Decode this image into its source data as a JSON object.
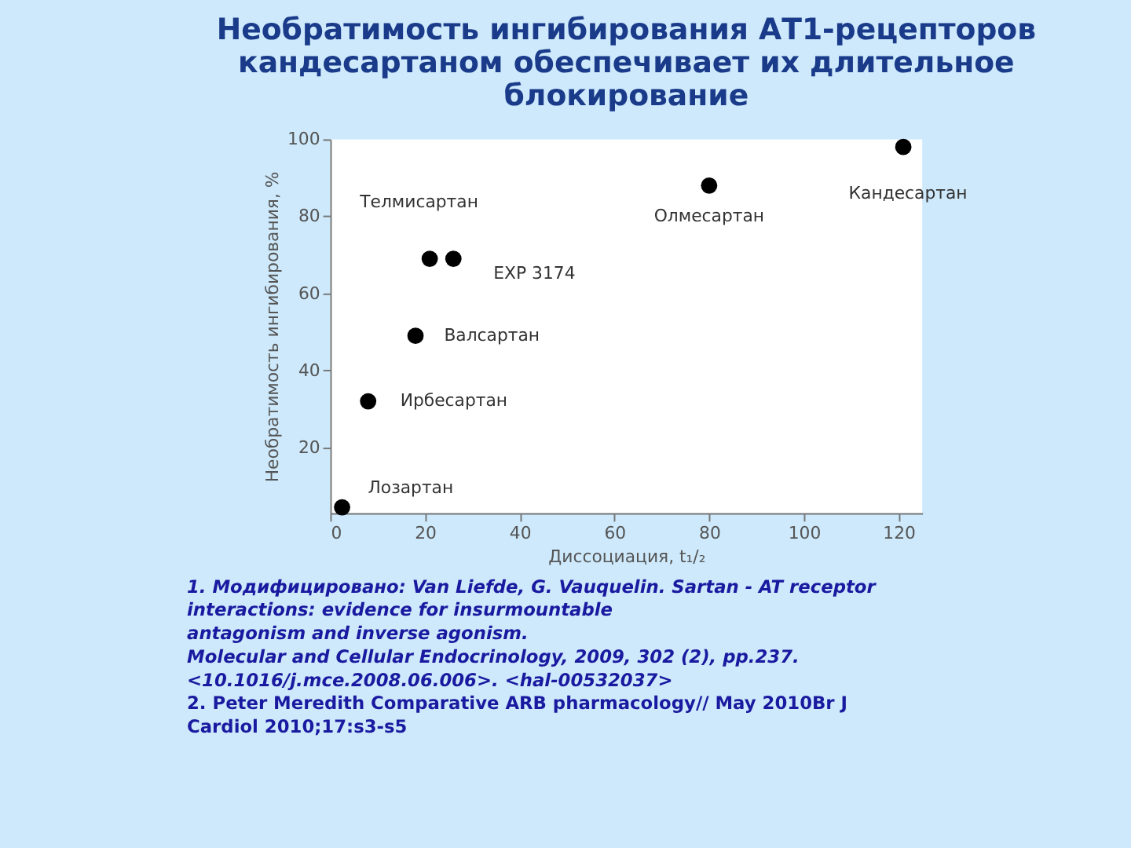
{
  "chart_data": {
    "type": "scatter",
    "title": [
      "Необратимость ингибирования АТ1-рецепторов",
      "кандесартаном обеспечивает их длительное",
      "блокирование"
    ],
    "xlabel": "Диссоциация, t₁/₂",
    "ylabel": "Необратимость ингибирования, %",
    "x": [
      2.5,
      8,
      18,
      21,
      26,
      80,
      121
    ],
    "series": [
      {
        "color": "#000000",
        "values": [
          4.5,
          32,
          49,
          69,
          69,
          88,
          98
        ]
      }
    ],
    "xlim": [
      0,
      125
    ],
    "xticks": [
      0,
      20,
      40,
      60,
      80,
      100,
      120
    ],
    "ylim": [
      3,
      100
    ],
    "yticks": [
      20,
      40,
      60,
      80,
      100
    ],
    "marker": "circle",
    "grid": false,
    "legend": false,
    "annotations": [
      "Телмисартан",
      {
        "text": "EXP 3174",
        "x": 26,
        "y": 69
      },
      {
        "text": "Валсартан",
        "x": 18,
        "y": 49
      },
      {
        "text": "Ирбесартан",
        "x": 8,
        "y": 32
      },
      {
        "text": "Лозартан",
        "x": 2.5,
        "y": 4.5
      },
      {
        "text": "Олмесартан",
        "x": 80,
        "y": 88
      },
      {
        "text": "Кандесартан",
        "x": 121,
        "y": 98
      },
      "1. Модифицировано: Van Liefde, G. Vauquelin. Sartan - AT receptor",
      "interactions: evidence for insurmountable",
      "antagonism and inverse agonism.",
      "Molecular and Cellular Endocrinology, 2009, 302 (2), pp.237.",
      "<10.1016/j.mce.2008.06.006>. <hal-00532037>",
      "2.  Peter Meredith Comparative ARB pharmacology// May 2010Br J",
      "Cardiol 2010;17:s3-s5"
    ]
  }
}
